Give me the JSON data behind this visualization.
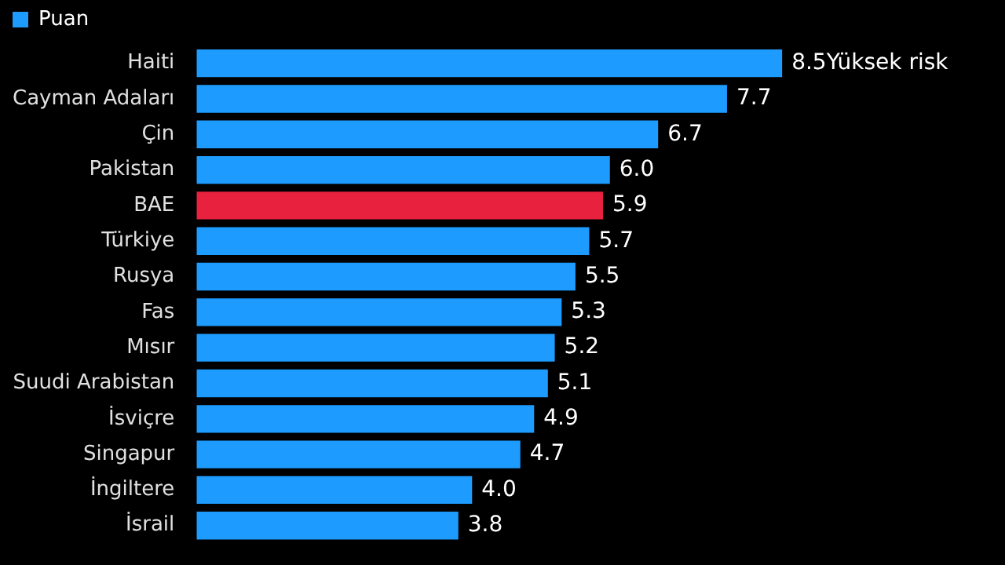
{
  "chart_data": {
    "type": "bar",
    "orientation": "horizontal",
    "categories": [
      "Haiti",
      "Cayman Adaları",
      "Çin",
      "Pakistan",
      "BAE",
      "Türkiye",
      "Rusya",
      "Fas",
      "Mısır",
      "Suudi Arabistan",
      "İsviçre",
      "Singapur",
      "İngiltere",
      "İsrail"
    ],
    "series": [
      {
        "name": "Puan",
        "color": "#1e9bff",
        "values": [
          8.5,
          7.7,
          6.7,
          6.0,
          5.9,
          5.7,
          5.5,
          5.3,
          5.2,
          5.1,
          4.9,
          4.7,
          4.0,
          3.8
        ],
        "value_labels": [
          "8.5",
          "7.7",
          "6.7",
          "6.0",
          "5.9",
          "5.7",
          "5.5",
          "5.3",
          "5.2",
          "5.1",
          "4.9",
          "4.7",
          "4.0",
          "3.8"
        ],
        "colors": [
          "#1e9bff",
          "#1e9bff",
          "#1e9bff",
          "#1e9bff",
          "#e8213f",
          "#1e9bff",
          "#1e9bff",
          "#1e9bff",
          "#1e9bff",
          "#1e9bff",
          "#1e9bff",
          "#1e9bff",
          "#1e9bff",
          "#1e9bff"
        ]
      }
    ],
    "tick_labels": "y",
    "grid": false,
    "legend": "top left",
    "annotations": [
      {
        "text": "Yüksek risk",
        "x": 8.5,
        "y": "Haiti"
      }
    ]
  }
}
